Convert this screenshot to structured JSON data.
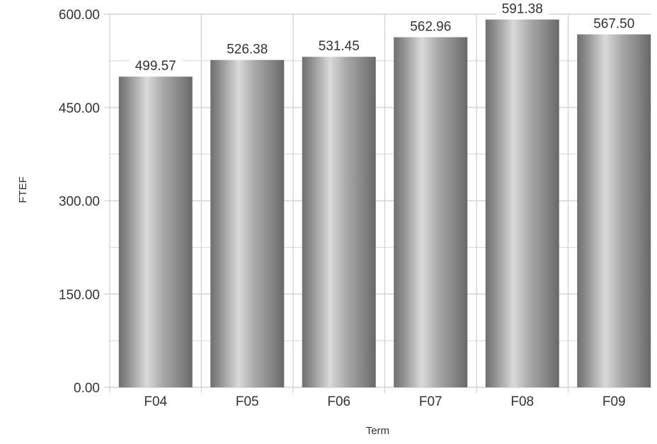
{
  "chart_data": {
    "type": "bar",
    "title": "",
    "xlabel": "Term",
    "ylabel": "FTEF",
    "categories": [
      "F04",
      "F05",
      "F06",
      "F07",
      "F08",
      "F09"
    ],
    "values": [
      499.57,
      526.38,
      531.45,
      562.96,
      591.38,
      567.5
    ],
    "data_labels": [
      "499.57",
      "526.38",
      "531.45",
      "562.96",
      "591.38",
      "567.50"
    ],
    "ylim": [
      0,
      600
    ],
    "y_ticks": [
      0,
      150,
      300,
      450,
      600
    ],
    "y_tick_labels": [
      "0.00",
      "150.00",
      "300.00",
      "450.00",
      "600.00"
    ],
    "grid": true,
    "legend": "none",
    "colors": {
      "bar_dark": "#6e6e6e",
      "bar_light": "#dcdcdc",
      "grid": "#d4d4d4",
      "label_background": "#ffffff",
      "text": "#333333"
    }
  }
}
